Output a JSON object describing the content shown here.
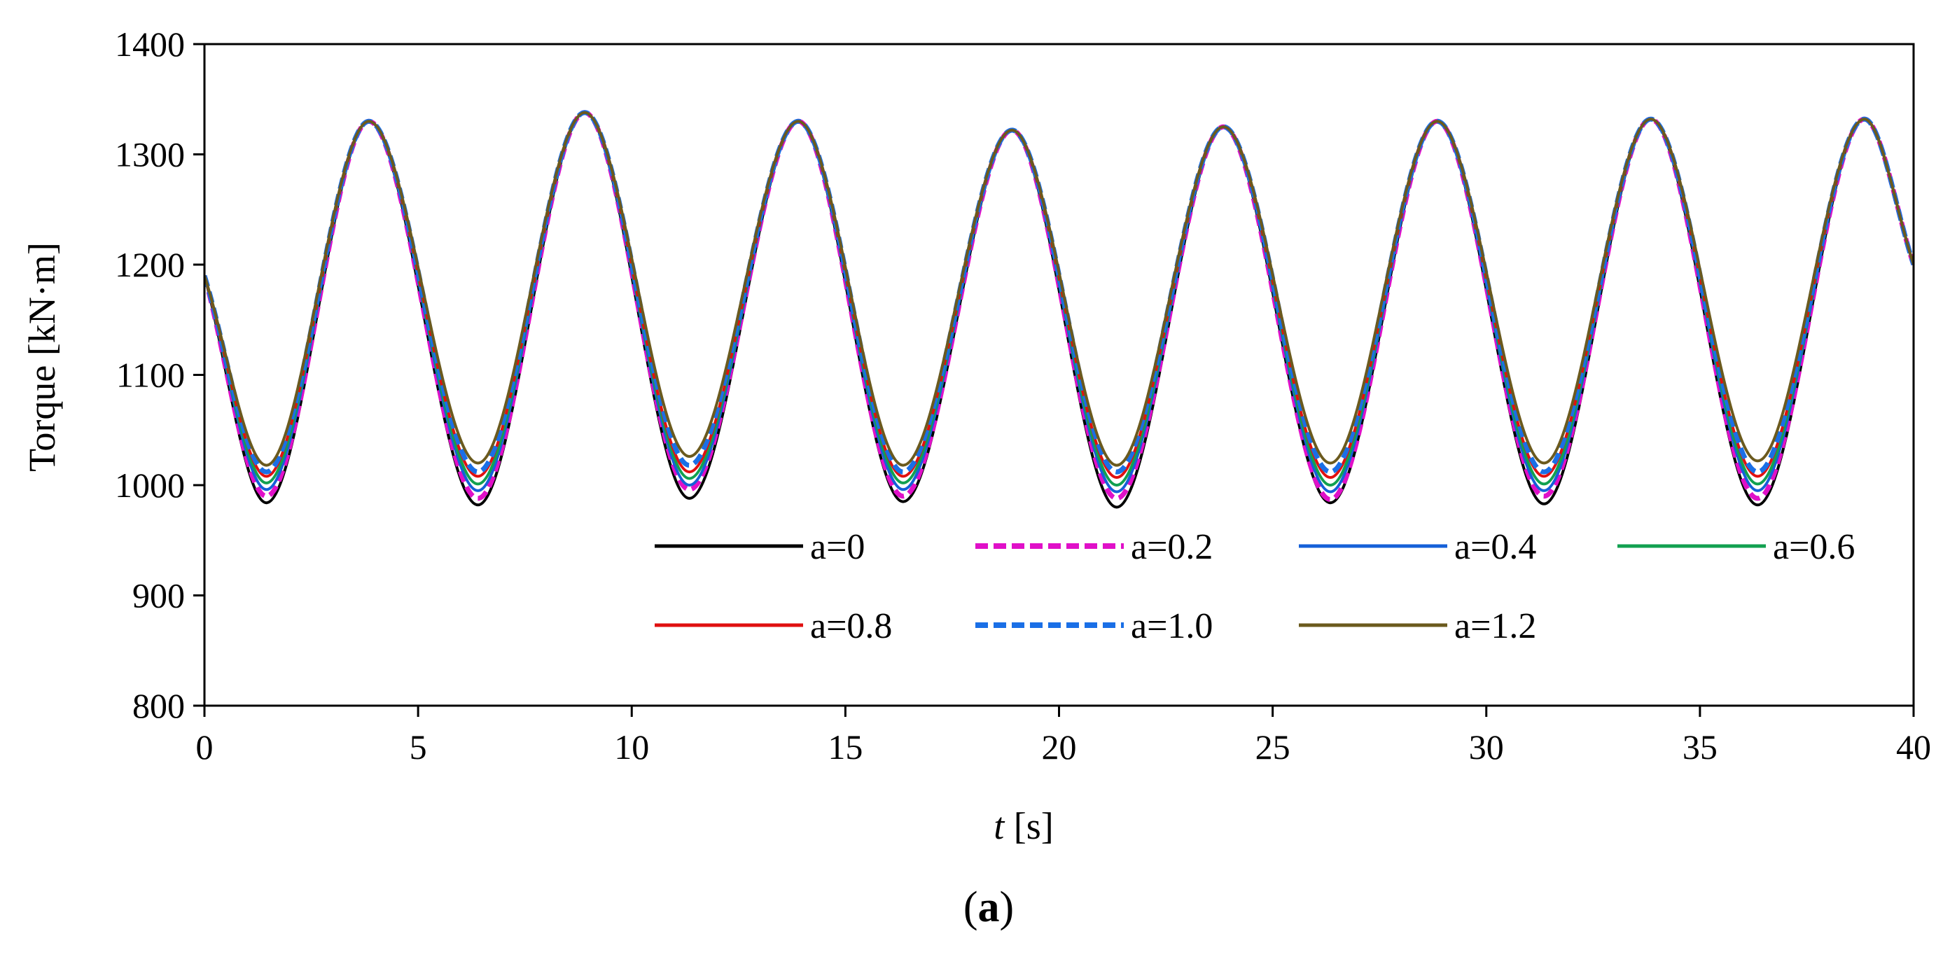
{
  "chart_data": {
    "type": "line",
    "xlabel_italic": "t",
    "xlabel_rest": " [s]",
    "ylabel": "Torque [kN·m]",
    "panel_label_open": "(",
    "panel_label_letter": "a",
    "panel_label_close": ")",
    "xlim": [
      0,
      40
    ],
    "ylim": [
      800,
      1400
    ],
    "x_ticks": [
      0,
      5,
      10,
      15,
      20,
      25,
      30,
      35,
      40
    ],
    "y_ticks": [
      800,
      900,
      1000,
      1100,
      1200,
      1300,
      1400
    ],
    "grid": false,
    "legend_position": "inside-bottom",
    "signal": {
      "start_value": 1190,
      "period_s": 4.97,
      "minima_t": [
        1.45,
        6.4,
        11.35,
        16.35,
        21.35,
        26.35,
        31.35,
        36.35
      ],
      "maxima_t": [
        3.85,
        8.9,
        13.9,
        18.9,
        23.85,
        28.85,
        33.85,
        38.85
      ],
      "peak_values": [
        1330,
        1338,
        1330,
        1322,
        1325,
        1330,
        1332,
        1332
      ],
      "end_value": 1200
    },
    "series": [
      {
        "name": "a=0",
        "color": "#000000",
        "dash": "solid",
        "trough_values": [
          984,
          982,
          988,
          985,
          980,
          984,
          983,
          982
        ]
      },
      {
        "name": "a=0.2",
        "color": "#e010c8",
        "dash": "dashed",
        "trough_values": [
          990,
          988,
          996,
          990,
          988,
          987,
          990,
          988
        ]
      },
      {
        "name": "a=0.4",
        "color": "#1560d8",
        "dash": "solid",
        "trough_values": [
          996,
          995,
          1000,
          996,
          994,
          994,
          995,
          995
        ]
      },
      {
        "name": "a=0.6",
        "color": "#12a050",
        "dash": "solid",
        "trough_values": [
          1002,
          1001,
          1006,
          1002,
          1000,
          1000,
          1001,
          1001
        ]
      },
      {
        "name": "a=0.8",
        "color": "#e01010",
        "dash": "solid",
        "trough_values": [
          1008,
          1008,
          1012,
          1008,
          1007,
          1007,
          1008,
          1008
        ]
      },
      {
        "name": "a=1.0",
        "color": "#1a6fe6",
        "dash": "dashed",
        "trough_values": [
          1012,
          1012,
          1018,
          1012,
          1012,
          1012,
          1012,
          1012
        ]
      },
      {
        "name": "a=1.2",
        "color": "#6b5a1e",
        "dash": "solid",
        "trough_values": [
          1018,
          1020,
          1026,
          1018,
          1018,
          1020,
          1020,
          1022
        ]
      }
    ]
  }
}
